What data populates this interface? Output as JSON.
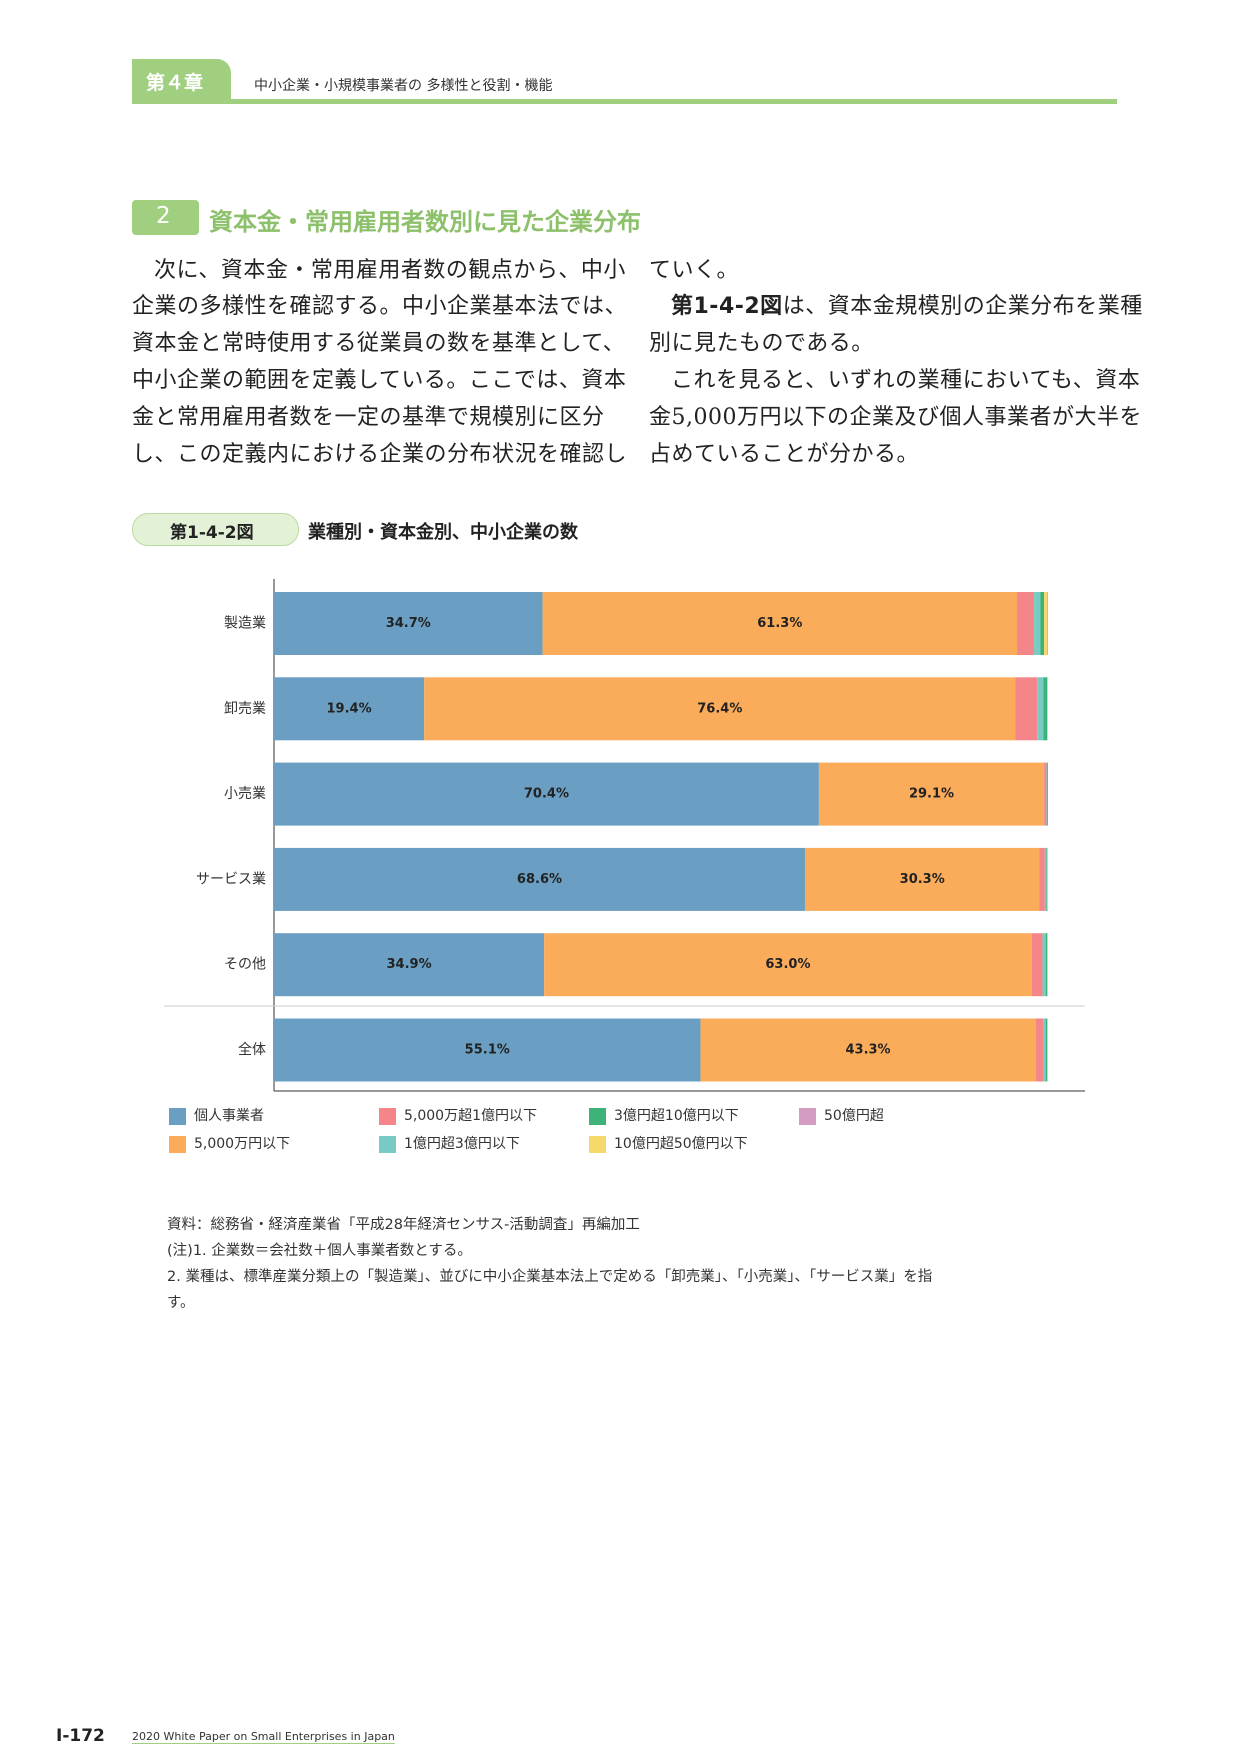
{
  "header": {
    "chapter": "第４章",
    "title": "中小企業・小規模事業者の 多様性と役割・機能"
  },
  "section": {
    "number": "2",
    "title": "資本金・常用雇用者数別に見た企業分布"
  },
  "body": {
    "left_lines": [
      "次に、資本金・常用雇用者数の観点から、中小",
      "企業の多様性を確認する。中小企業基本法では、",
      "資本金と常時使用する従業員の数を基準として、",
      "中小企業の範囲を定義している。ここでは、資本",
      "金と常用雇用者数を一定の基準で規模別に区分",
      "し、この定義内における企業の分布状況を確認し"
    ],
    "right_lines": [
      "ていく。",
      "別に見たものである。",
      "これを見ると、いずれの業種においても、資本",
      "金5,000万円以下の企業及び個人事業者が大半を",
      "占めていることが分かる。"
    ],
    "figure_ref": "第1-4-2図",
    "figure_ref_rest": "は、資本金規模別の企業分布を業種"
  },
  "figure": {
    "label": "第1-4-2図",
    "title": "業種別・資本金別、中小企業の数"
  },
  "chart_data": {
    "type": "stacked_bar_horizontal",
    "categories": [
      "製造業",
      "卸売業",
      "小売業",
      "サービス業",
      "その他",
      "全体"
    ],
    "xlim": [
      0,
      100
    ],
    "series": [
      {
        "name": "個人事業者",
        "color": "#6a9fc3",
        "values": [
          34.7,
          19.4,
          70.4,
          68.6,
          34.9,
          55.1
        ],
        "value_labels": [
          "34.7%",
          "19.4%",
          "70.4%",
          "68.6%",
          "34.9%",
          "55.1%"
        ]
      },
      {
        "name": "5,000万円以下",
        "color": "#fbac5b",
        "values": [
          61.3,
          76.4,
          29.1,
          30.3,
          63.0,
          43.3
        ],
        "value_labels": [
          "61.3%",
          "76.4%",
          "29.1%",
          "30.3%",
          "63.0%",
          "43.3%"
        ]
      },
      {
        "name": "5,000万超1億円以下",
        "color": "#f4868a",
        "values": [
          2.2,
          2.8,
          0.3,
          0.7,
          1.4,
          1.0
        ]
      },
      {
        "name": "1億円超3億円以下",
        "color": "#78cbc4",
        "values": [
          0.8,
          0.8,
          0.1,
          0.2,
          0.4,
          0.3
        ]
      },
      {
        "name": "3億円超10億円以下",
        "color": "#3db37a",
        "values": [
          0.5,
          0.5,
          0.1,
          0.1,
          0.2,
          0.2
        ]
      },
      {
        "name": "10億円超50億円以下",
        "color": "#f7d86a",
        "values": [
          0.4,
          0.1,
          0.0,
          0.1,
          0.1,
          0.1
        ]
      },
      {
        "name": "50億円超",
        "color": "#d49cc0",
        "values": [
          0.1,
          0.0,
          0.0,
          0.0,
          0.0,
          0.0
        ]
      }
    ]
  },
  "notes": [
    "資料：総務省・経済産業省「平成28年経済センサス‐活動調査」再編加工",
    "(注)1. 企業数＝会社数＋個人事業者数とする。",
    "2. 業種は、標準産業分類上の「製造業」、並びに中小企業基本法上で定める「卸売業」、「小売業」、「サービス業」を指",
    "す。"
  ],
  "footer": {
    "page": "Ⅰ-172",
    "title": "2020 White Paper on Small Enterprises in Japan"
  }
}
